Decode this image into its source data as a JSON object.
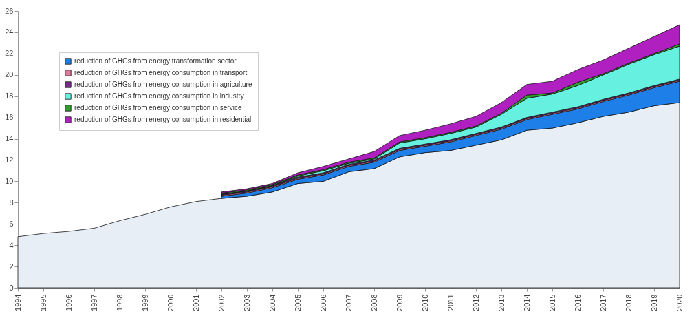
{
  "chart_data": {
    "type": "area",
    "stacked": true,
    "legend": "top left",
    "grid": false,
    "categories": [
      "1994",
      "1995",
      "1996",
      "1997",
      "1998",
      "1999",
      "2000",
      "2001",
      "2002",
      "2003",
      "2004",
      "2005",
      "2006",
      "2007",
      "2008",
      "2009",
      "2010",
      "2011",
      "2012",
      "2013",
      "2014",
      "2015",
      "2016",
      "2017",
      "2018",
      "2019",
      "2020"
    ],
    "ylim": [
      0,
      26
    ],
    "yticks": [
      0,
      2,
      4,
      6,
      8,
      10,
      12,
      14,
      16,
      18,
      20,
      22,
      24,
      26
    ],
    "series": [
      {
        "color": "#e8eef5",
        "values": [
          4.8,
          5.1,
          5.3,
          5.6,
          6.3,
          6.9,
          7.6,
          8.1,
          8.4,
          8.6,
          9.0,
          9.8,
          10.0,
          10.9,
          11.2,
          12.3,
          12.7,
          12.9,
          13.4,
          13.9,
          14.8,
          15.0,
          15.5,
          16.1,
          16.5,
          17.1,
          17.4
        ]
      },
      {
        "name": "reduction of GHGs from energy transformation sector",
        "color": "#1f7fe8",
        "values": [
          null,
          null,
          null,
          null,
          null,
          null,
          null,
          null,
          0.2,
          0.3,
          0.4,
          0.4,
          0.6,
          0.5,
          0.6,
          0.6,
          0.6,
          0.8,
          0.9,
          1.0,
          1.0,
          1.3,
          1.3,
          1.4,
          1.6,
          1.7,
          2.0
        ]
      },
      {
        "name": "reduction of GHGs from energy consumption in transport",
        "color": "#e07a9a",
        "values": [
          null,
          null,
          null,
          null,
          null,
          null,
          null,
          null,
          0.1,
          0.1,
          0.1,
          0.1,
          0.1,
          0.1,
          0.1,
          0.1,
          0.1,
          0.1,
          0.1,
          0.1,
          0.1,
          0.1,
          0.1,
          0.1,
          0.1,
          0.1,
          0.1
        ]
      },
      {
        "name": "reduction of GHGs from energy consumption in agriculture",
        "color": "#7a2a8a",
        "values": [
          null,
          null,
          null,
          null,
          null,
          null,
          null,
          null,
          0.1,
          0.1,
          0.1,
          0.1,
          0.1,
          0.1,
          0.1,
          0.1,
          0.1,
          0.1,
          0.1,
          0.1,
          0.1,
          0.1,
          0.1,
          0.1,
          0.1,
          0.1,
          0.1
        ]
      },
      {
        "name": "reduction of GHGs from energy consumption in industry",
        "color": "#66f0e0",
        "values": [
          null,
          null,
          null,
          null,
          null,
          null,
          null,
          null,
          0.0,
          0.0,
          0.0,
          0.1,
          0.2,
          0.1,
          0.1,
          0.5,
          0.5,
          0.6,
          0.6,
          1.2,
          1.8,
          1.7,
          2.0,
          2.3,
          2.7,
          2.9,
          3.1
        ]
      },
      {
        "name": "reduction of GHGs from energy consumption in service",
        "color": "#2ea02e",
        "values": [
          null,
          null,
          null,
          null,
          null,
          null,
          null,
          null,
          0.1,
          0.1,
          0.1,
          0.1,
          0.1,
          0.1,
          0.1,
          0.1,
          0.1,
          0.1,
          0.1,
          0.1,
          0.3,
          0.1,
          0.3,
          0.1,
          0.1,
          0.1,
          0.2
        ]
      },
      {
        "name": "reduction of GHGs from energy consumption in residential",
        "color": "#b020c0",
        "values": [
          null,
          null,
          null,
          null,
          null,
          null,
          null,
          null,
          0.1,
          0.1,
          0.1,
          0.2,
          0.3,
          0.3,
          0.6,
          0.6,
          0.7,
          0.8,
          0.9,
          1.0,
          1.0,
          1.1,
          1.2,
          1.3,
          1.4,
          1.6,
          1.8
        ]
      }
    ]
  }
}
